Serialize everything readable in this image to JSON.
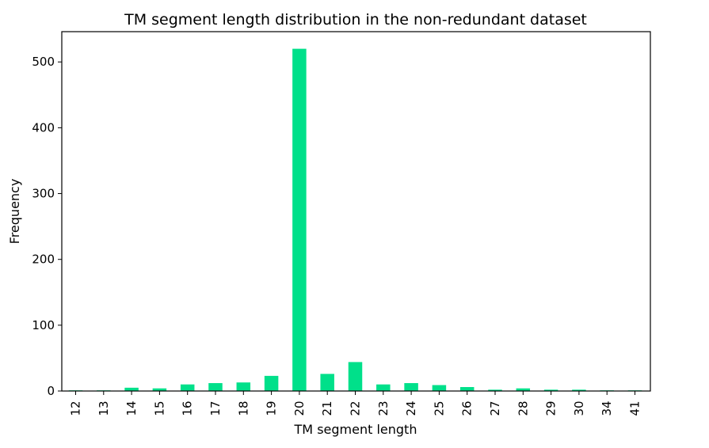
{
  "chart_data": {
    "type": "bar",
    "title": "TM segment length distribution in the non-redundant dataset",
    "xlabel": "TM segment length",
    "ylabel": "Frequency",
    "categories": [
      "12",
      "13",
      "14",
      "15",
      "16",
      "17",
      "18",
      "19",
      "20",
      "21",
      "22",
      "23",
      "24",
      "25",
      "26",
      "27",
      "28",
      "29",
      "30",
      "34",
      "41"
    ],
    "values": [
      1,
      1,
      5,
      4,
      10,
      12,
      13,
      23,
      520,
      26,
      44,
      10,
      12,
      9,
      6,
      2,
      4,
      2,
      2,
      1,
      1
    ],
    "ylim": [
      0,
      546
    ],
    "yticks": [
      0,
      100,
      200,
      300,
      400,
      500
    ],
    "bar_color": "#00e08a",
    "grid": false,
    "legend": "none"
  }
}
